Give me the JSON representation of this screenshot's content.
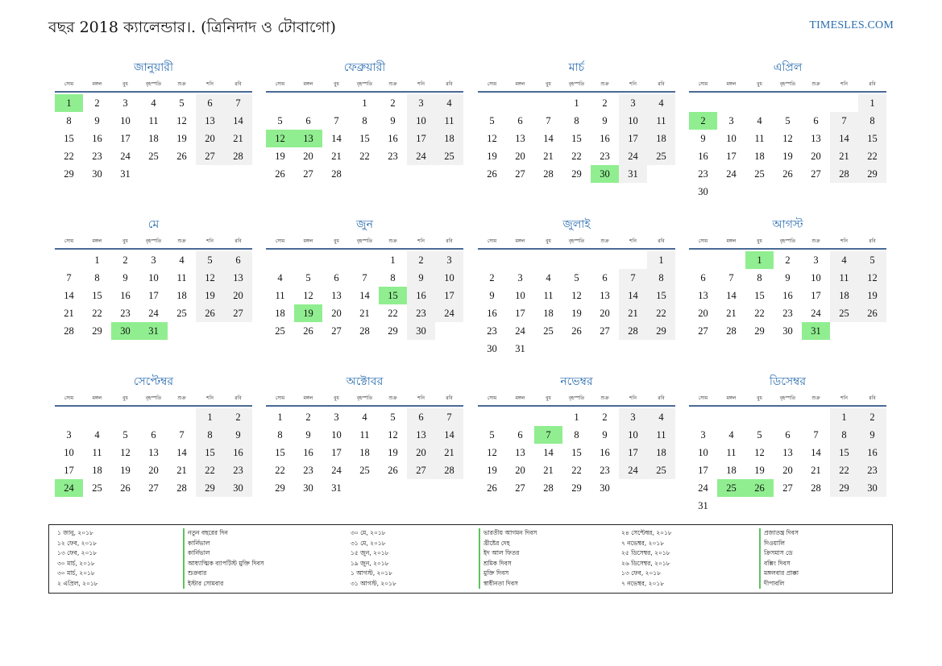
{
  "header": {
    "title": "বছর 2018 ক্যালেন্ডার।. (ত্রিনিদাদ ও টোবাগো)",
    "site": "TIMESLES.COM"
  },
  "weekdays": [
    "সোম",
    "মঙ্গল",
    "বুধ",
    "বৃহস্পতি",
    "শুক্র",
    "শনি",
    "রবি"
  ],
  "months": [
    {
      "name": "জানুয়ারী",
      "offset": 0,
      "days": 31,
      "holidays": [
        1
      ]
    },
    {
      "name": "ফেব্রুয়ারী",
      "offset": 3,
      "days": 28,
      "holidays": [
        12,
        13
      ]
    },
    {
      "name": "মার্চ",
      "offset": 3,
      "days": 31,
      "holidays": [
        30
      ]
    },
    {
      "name": "এপ্রিল",
      "offset": 6,
      "days": 30,
      "holidays": [
        2
      ]
    },
    {
      "name": "মে",
      "offset": 1,
      "days": 31,
      "holidays": [
        30,
        31
      ]
    },
    {
      "name": "জুন",
      "offset": 4,
      "days": 30,
      "holidays": [
        15,
        19
      ]
    },
    {
      "name": "জুলাই",
      "offset": 6,
      "days": 31,
      "holidays": []
    },
    {
      "name": "আগস্ট",
      "offset": 2,
      "days": 31,
      "holidays": [
        1,
        31
      ]
    },
    {
      "name": "সেপ্টেম্বর",
      "offset": 5,
      "days": 30,
      "holidays": [
        24
      ]
    },
    {
      "name": "অক্টোবর",
      "offset": 0,
      "days": 31,
      "holidays": []
    },
    {
      "name": "নভেম্বর",
      "offset": 3,
      "days": 30,
      "holidays": [
        7
      ]
    },
    {
      "name": "ডিসেম্বর",
      "offset": 5,
      "days": 31,
      "holidays": [
        25,
        26
      ]
    }
  ],
  "colors": {
    "holiday": "#90ee90",
    "weekend": "#f1f1f1",
    "accent": "#2a6db0"
  },
  "legend": [
    {
      "date": "১ জানু, ২০১৮",
      "name": "নতুন বছরের দিন"
    },
    {
      "date": "১২ ফেব, ২০১৮",
      "name": "কার্নিভাল"
    },
    {
      "date": "১৩ ফেব, ২০১৮",
      "name": "কার্নিভাল"
    },
    {
      "date": "৩০ মার্চ, ২০১৮",
      "name": "আধ্যাত্মিক ব্যাপটিস্ট মুক্তি দিবস"
    },
    {
      "date": "৩০ মার্চ, ২০১৮",
      "name": "শুক্রবার"
    },
    {
      "date": "২ এপ্রিল, ২০১৮",
      "name": "ইস্টার সোমবার"
    },
    {
      "date": "৩০ মে, ২০১৮",
      "name": "ভারতীয় আগমন দিবস"
    },
    {
      "date": "৩১ মে, ২০১৮",
      "name": "খ্রীষ্টের দেহ"
    },
    {
      "date": "১৫ জুন, ২০১৮",
      "name": "ইদ আল ফিতর"
    },
    {
      "date": "১৯ জুন, ২০১৮",
      "name": "শ্রমিক দিবস"
    },
    {
      "date": "১ আগস্ট, ২০১৮",
      "name": "মুক্তি দিবস"
    },
    {
      "date": "৩১ আগস্ট, ২০১৮",
      "name": "স্বাধীনতা দিবস"
    },
    {
      "date": "২৪ সেপ্টেম্বর, ২০১৮",
      "name": "প্রজাতন্ত্র দিবস"
    },
    {
      "date": "৭ নভেম্বর, ২০১৮",
      "name": "দিওয়ালি"
    },
    {
      "date": "২৫ ডিসেম্বর, ২০১৮",
      "name": "ক্রিসমাস ডে"
    },
    {
      "date": "২৬ ডিসেম্বর, ২০১৮",
      "name": "বক্সিং দিবস"
    },
    {
      "date": "১৩ ফেব, ২০১৮",
      "name": "মঙ্গলবার প্রাক্কা"
    },
    {
      "date": "৭ নভেম্বর, ২০১৮",
      "name": "দীপাবলি"
    }
  ]
}
